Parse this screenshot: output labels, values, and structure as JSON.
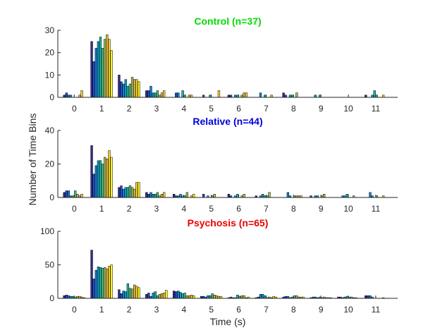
{
  "figure": {
    "ylabel": "Number of Time Bins",
    "xlabel": "Time (s)"
  },
  "chart_data": [
    {
      "type": "bar",
      "title": "Control (n=37)",
      "title_color": "#00dd00",
      "categories": [
        "0",
        "1",
        "2",
        "3",
        "4",
        "5",
        "6",
        "7",
        "8",
        "9",
        "10",
        "11"
      ],
      "ylim": [
        0,
        30
      ],
      "yticks": [
        0,
        10,
        20,
        30
      ],
      "xlim": [
        -0.6,
        11.8
      ],
      "grid": false,
      "series_per_category": 10,
      "values": [
        [
          1,
          2,
          1,
          1,
          0,
          0,
          0,
          1,
          3,
          0
        ],
        [
          25,
          16,
          22,
          25,
          27,
          22,
          26,
          28,
          26,
          21
        ],
        [
          10,
          7,
          6,
          8,
          5,
          6,
          9,
          8,
          8,
          7
        ],
        [
          3,
          3,
          5,
          2,
          2,
          3,
          1,
          2,
          3,
          0
        ],
        [
          0,
          2,
          2,
          0,
          3,
          1,
          0,
          1,
          1,
          0
        ],
        [
          0,
          1,
          0,
          0,
          1,
          0,
          0,
          0,
          3,
          0
        ],
        [
          1,
          1,
          0,
          1,
          1,
          0,
          1,
          2,
          2,
          0
        ],
        [
          0,
          0,
          2,
          0,
          1,
          0,
          0,
          1,
          0,
          0
        ],
        [
          2,
          1,
          0,
          1,
          1,
          0,
          2,
          0,
          0,
          0
        ],
        [
          0,
          0,
          1,
          0,
          1,
          0,
          0,
          0,
          0,
          0
        ],
        [
          0,
          0,
          0,
          0,
          0,
          0,
          0,
          0,
          0,
          0
        ],
        [
          1,
          0,
          0,
          1,
          3,
          1,
          0,
          0,
          1,
          0
        ]
      ]
    },
    {
      "type": "bar",
      "title": "Relative (n=44)",
      "title_color": "#0000dd",
      "categories": [
        "0",
        "1",
        "2",
        "3",
        "4",
        "5",
        "6",
        "7",
        "8",
        "9",
        "10",
        "11"
      ],
      "ylim": [
        0,
        40
      ],
      "yticks": [
        0,
        20,
        40
      ],
      "xlim": [
        -0.6,
        11.8
      ],
      "grid": false,
      "series_per_category": 10,
      "values": [
        [
          3,
          4,
          4,
          1,
          1,
          4,
          2,
          1,
          2,
          0
        ],
        [
          31,
          14,
          19,
          22,
          22,
          20,
          24,
          23,
          28,
          24
        ],
        [
          6,
          7,
          5,
          6,
          6,
          7,
          6,
          5,
          9,
          9
        ],
        [
          3,
          2,
          3,
          2,
          2,
          3,
          1,
          2,
          3,
          0
        ],
        [
          2,
          1,
          1,
          2,
          1,
          1,
          3,
          0,
          1,
          2
        ],
        [
          0,
          2,
          0,
          1,
          0,
          1,
          2,
          0,
          0,
          0
        ],
        [
          2,
          1,
          0,
          1,
          2,
          0,
          1,
          2,
          0,
          0
        ],
        [
          1,
          0,
          1,
          2,
          1,
          1,
          3,
          0,
          0,
          0
        ],
        [
          0,
          0,
          3,
          1,
          0,
          1,
          1,
          1,
          1,
          0
        ],
        [
          1,
          0,
          1,
          1,
          0,
          1,
          2,
          0,
          0,
          0
        ],
        [
          0,
          0,
          1,
          1,
          2,
          0,
          0,
          1,
          0,
          0
        ],
        [
          0,
          0,
          3,
          1,
          0,
          1,
          0,
          0,
          1,
          0
        ]
      ]
    },
    {
      "type": "bar",
      "title": "Psychosis (n=65)",
      "title_color": "#ee0000",
      "categories": [
        "0",
        "1",
        "2",
        "3",
        "4",
        "5",
        "6",
        "7",
        "8",
        "9",
        "10",
        "11"
      ],
      "ylim": [
        0,
        100
      ],
      "yticks": [
        0,
        50,
        100
      ],
      "xlim": [
        -0.6,
        11.8
      ],
      "grid": false,
      "series_per_category": 10,
      "values": [
        [
          4,
          5,
          4,
          3,
          3,
          2,
          3,
          3,
          2,
          1
        ],
        [
          72,
          29,
          42,
          47,
          46,
          45,
          46,
          44,
          48,
          50
        ],
        [
          13,
          7,
          11,
          10,
          22,
          15,
          14,
          20,
          18,
          16
        ],
        [
          6,
          8,
          3,
          8,
          10,
          4,
          6,
          7,
          8,
          12
        ],
        [
          11,
          10,
          11,
          9,
          7,
          8,
          4,
          4,
          5,
          4
        ],
        [
          3,
          3,
          2,
          4,
          4,
          7,
          5,
          4,
          3,
          3
        ],
        [
          1,
          2,
          1,
          1,
          5,
          3,
          4,
          4,
          1,
          2
        ],
        [
          1,
          2,
          6,
          6,
          4,
          1,
          2,
          1,
          3,
          2
        ],
        [
          2,
          3,
          3,
          1,
          2,
          4,
          4,
          2,
          2,
          2
        ],
        [
          1,
          2,
          2,
          1,
          2,
          1,
          2,
          1,
          1,
          1
        ],
        [
          2,
          2,
          1,
          2,
          3,
          2,
          2,
          1,
          1,
          0
        ],
        [
          4,
          4,
          4,
          2,
          0,
          0,
          0,
          0,
          1,
          0
        ]
      ]
    }
  ]
}
